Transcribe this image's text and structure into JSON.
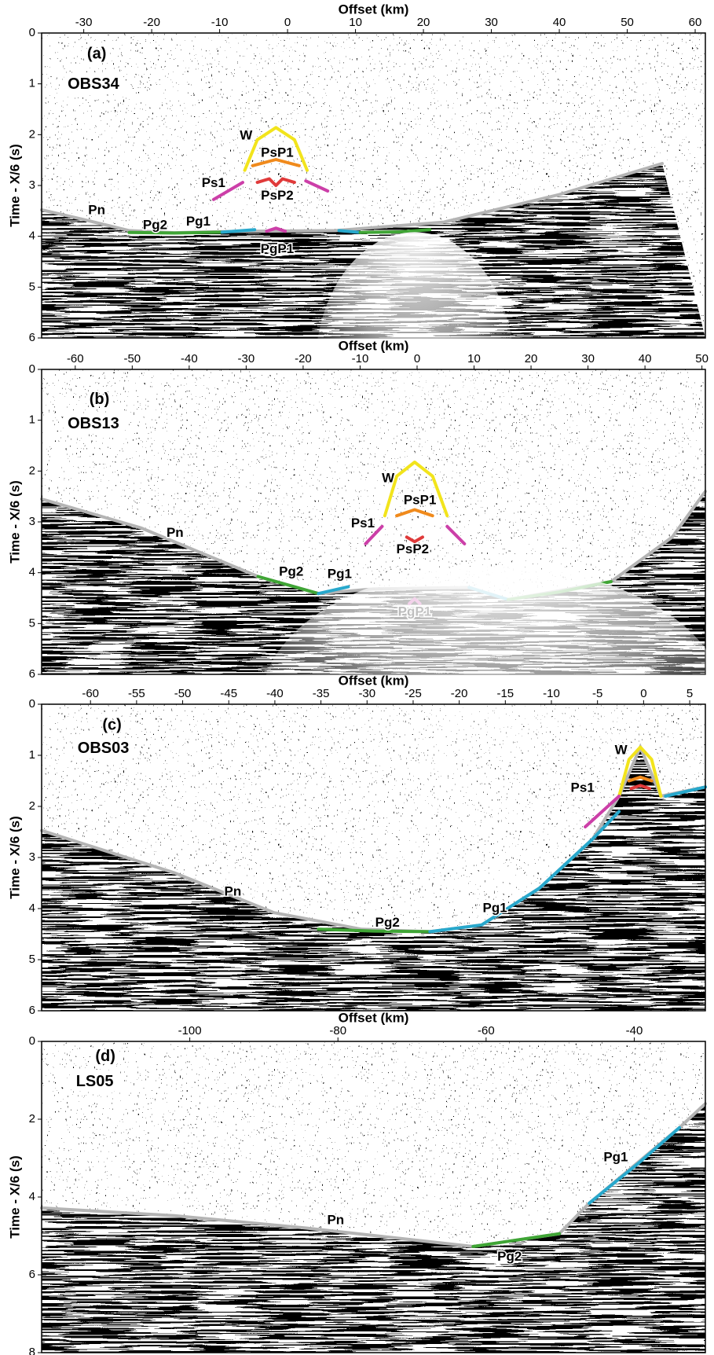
{
  "chart_data": [
    {
      "type": "record-section",
      "panel_label": "(a)",
      "station": "OBS34",
      "xlabel": "Offset (km)",
      "ylabel": "Time - X/6 (s)",
      "xlim": [
        -36.2,
        61.5
      ],
      "ylim": [
        0,
        6
      ],
      "y_inverted": true,
      "xticks": [
        -30,
        -20,
        -10,
        0,
        10,
        20,
        30,
        40,
        50,
        60
      ],
      "yticks": [
        0,
        1,
        2,
        3,
        4,
        5,
        6
      ],
      "annotations": [
        "W",
        "PsP1",
        "Ps1",
        "PsP2",
        "Pn",
        "Pg2",
        "Pg1",
        "PgP1"
      ]
    },
    {
      "type": "record-section",
      "panel_label": "(b)",
      "station": "OBS13",
      "xlabel": "Offset (km)",
      "ylabel": "Time - X/6 (s)",
      "xlim": [
        -65.9,
        50.6
      ],
      "ylim": [
        0,
        6
      ],
      "y_inverted": true,
      "xticks": [
        -60,
        -50,
        -40,
        -30,
        -20,
        -10,
        0,
        10,
        20,
        30,
        40,
        50
      ],
      "yticks": [
        0,
        1,
        2,
        3,
        4,
        5,
        6
      ],
      "annotations": [
        "W",
        "PsP1",
        "Ps1",
        "PsP2",
        "Pn",
        "Pg2",
        "Pg1",
        "PgP1"
      ]
    },
    {
      "type": "record-section",
      "panel_label": "(c)",
      "station": "OBS03",
      "xlabel": "Offset (km)",
      "ylabel": "Time - X/6 (s)",
      "xlim": [
        -65.3,
        6.7
      ],
      "ylim": [
        0,
        6
      ],
      "y_inverted": true,
      "xticks": [
        -60,
        -55,
        -50,
        -45,
        -40,
        -35,
        -30,
        -25,
        -20,
        -15,
        -10,
        -5,
        0,
        5
      ],
      "yticks": [
        0,
        1,
        2,
        3,
        4,
        5,
        6
      ],
      "annotations": [
        "W",
        "Ps1",
        "Pn",
        "Pg2",
        "Pg1"
      ]
    },
    {
      "type": "record-section",
      "panel_label": "(d)",
      "station": "LS05",
      "xlabel": "Offset (km)",
      "ylabel": "Time - X/6 (s)",
      "xlim": [
        -120,
        -30.4
      ],
      "ylim": [
        0,
        8
      ],
      "y_inverted": true,
      "xticks": [
        -100,
        -80,
        -60,
        -40
      ],
      "yticks": [
        0,
        2,
        4,
        6,
        8
      ],
      "annotations": [
        "Pn",
        "Pg2",
        "Pg1"
      ]
    }
  ]
}
